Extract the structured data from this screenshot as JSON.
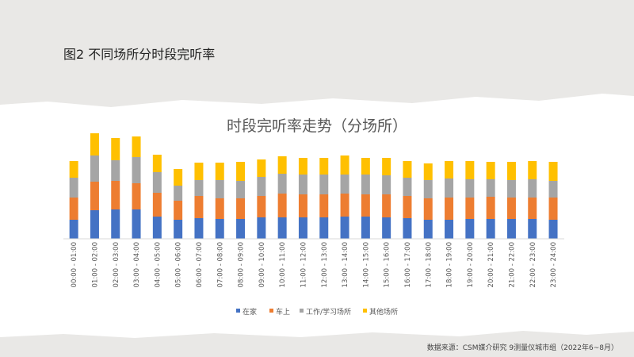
{
  "figure_title": "图2  不同场所分时段完听率",
  "source": "数据来源：CSM媒介研究  9测量仪城市组（2022年6~8月）",
  "chart_data": {
    "type": "stacked-bar",
    "title": "时段完听率走势（分场所）",
    "xlabel": "",
    "ylabel": "",
    "ylim": [
      0,
      140
    ],
    "grid": false,
    "y_axis_shown": false,
    "legend_position": "bottom",
    "categories": [
      "00:00 - 01:00",
      "01:00 - 02:00",
      "02:00 - 03:00",
      "03:00 - 04:00",
      "04:00 - 05:00",
      "05:00 - 06:00",
      "06:00 - 07:00",
      "07:00 - 08:00",
      "08:00 - 09:00",
      "09:00 - 10:00",
      "10:00 - 11:00",
      "11:00 - 12:00",
      "12:00 - 13:00",
      "13:00 - 14:00",
      "14:00 - 15:00",
      "15:00 - 16:00",
      "16:00 - 17:00",
      "17:00 - 18:00",
      "18:00 - 19:00",
      "19:00 - 20:00",
      "20:00 - 21:00",
      "21:00 - 22:00",
      "22:00 - 23:00",
      "23:00 - 24:00"
    ],
    "series": [
      {
        "name": "在家",
        "color": "#4472c4",
        "values": [
          24,
          36,
          37,
          37,
          28,
          24,
          26,
          25,
          25,
          27,
          27,
          27,
          27,
          28,
          28,
          27,
          26,
          24,
          24,
          25,
          25,
          25,
          25,
          24
        ]
      },
      {
        "name": "车上",
        "color": "#ed7d31",
        "values": [
          28,
          36,
          36,
          33,
          30,
          24,
          28,
          26,
          26,
          27,
          30,
          29,
          29,
          29,
          28,
          29,
          28,
          27,
          28,
          27,
          28,
          27,
          27,
          28
        ]
      },
      {
        "name": "工作/学习场所",
        "color": "#a5a5a5",
        "values": [
          25,
          33,
          26,
          33,
          26,
          19,
          20,
          23,
          22,
          24,
          25,
          25,
          25,
          24,
          25,
          24,
          23,
          23,
          24,
          23,
          22,
          22,
          23,
          21
        ]
      },
      {
        "name": "其他场所",
        "color": "#ffc000",
        "values": [
          21,
          28,
          28,
          26,
          22,
          21,
          22,
          22,
          24,
          22,
          22,
          21,
          21,
          24,
          21,
          22,
          21,
          21,
          22,
          23,
          22,
          23,
          23,
          24
        ]
      }
    ]
  }
}
